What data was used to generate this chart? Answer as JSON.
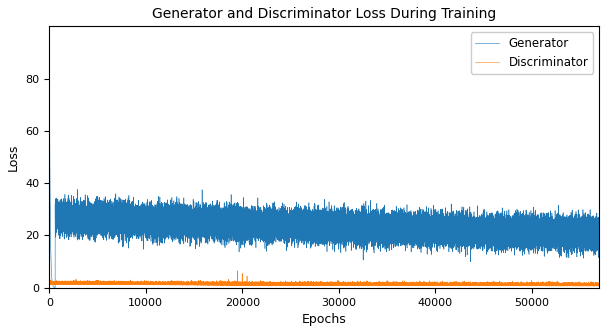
{
  "title": "Generator and Discriminator Loss During Training",
  "xlabel": "Epochs",
  "ylabel": "Loss",
  "xlim": [
    0,
    57000
  ],
  "ylim": [
    0,
    100
  ],
  "yticks": [
    0,
    20,
    40,
    60,
    80
  ],
  "xticks": [
    0,
    10000,
    20000,
    30000,
    40000,
    50000
  ],
  "xtick_labels": [
    "0",
    "10000",
    "20000",
    "30000",
    "40000",
    "50000"
  ],
  "gen_color": "#1f77b4",
  "disc_color": "#ff7f0e",
  "gen_label": "Generator",
  "disc_label": "Discriminator",
  "n_points": 57000,
  "seed": 42,
  "figsize": [
    6.06,
    3.33
  ],
  "dpi": 100,
  "title_fontsize": 10,
  "axis_fontsize": 9
}
